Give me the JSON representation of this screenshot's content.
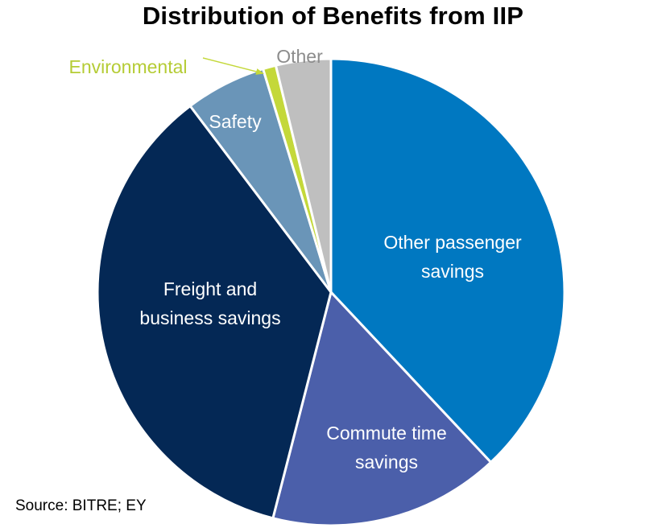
{
  "chart_data": {
    "type": "pie",
    "title": "Distribution of Benefits from IIP",
    "source": "Source: BITRE; EY",
    "slices": [
      {
        "label": "Other passenger savings",
        "lines": [
          "Other passenger",
          "savings"
        ],
        "value": 38,
        "color": "#0078C1",
        "label_color": "#ffffff",
        "label_placement": "inside"
      },
      {
        "label": "Commute time savings",
        "lines": [
          "Commute time",
          "savings"
        ],
        "value": 16,
        "color": "#4B5FAA",
        "label_color": "#ffffff",
        "label_placement": "inside"
      },
      {
        "label": "Freight and business savings",
        "lines": [
          "Freight and",
          "business savings"
        ],
        "value": 35.7,
        "color": "#042855",
        "label_color": "#ffffff",
        "label_placement": "inside"
      },
      {
        "label": "Safety",
        "lines": [
          "Safety"
        ],
        "value": 5.6,
        "color": "#6A95B8",
        "label_color": "#ffffff",
        "label_placement": "inside"
      },
      {
        "label": "Environmental",
        "lines": [
          "Environmental"
        ],
        "value": 0.9,
        "color": "#C4D83A",
        "label_color": "#B5CC35",
        "label_placement": "outside-arrow"
      },
      {
        "label": "Other",
        "lines": [
          "Other"
        ],
        "value": 3.8,
        "color": "#BFBFBF",
        "label_color": "#8C8C8C",
        "label_placement": "outside"
      }
    ]
  }
}
